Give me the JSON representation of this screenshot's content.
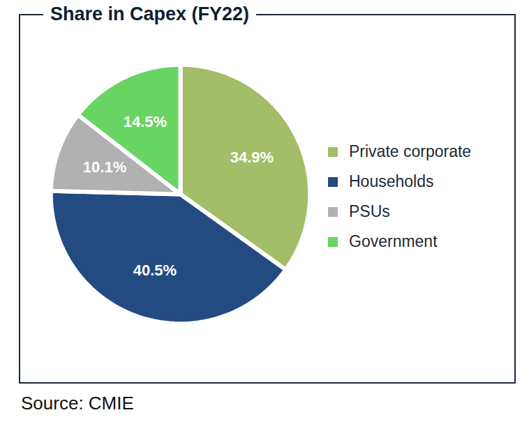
{
  "chart_data": {
    "type": "pie",
    "title": "Share in Capex (FY22)",
    "categories": [
      "Private corporate",
      "Households",
      "PSUs",
      "Government"
    ],
    "values": [
      34.9,
      40.5,
      10.1,
      14.5
    ],
    "value_labels": [
      "34.9%",
      "40.5%",
      "10.1%",
      "14.5%"
    ],
    "colors": [
      "#a3bd69",
      "#234b82",
      "#b1b1b1",
      "#68d463"
    ],
    "data_labels": true,
    "legend": "right",
    "source": "Source: CMIE"
  }
}
